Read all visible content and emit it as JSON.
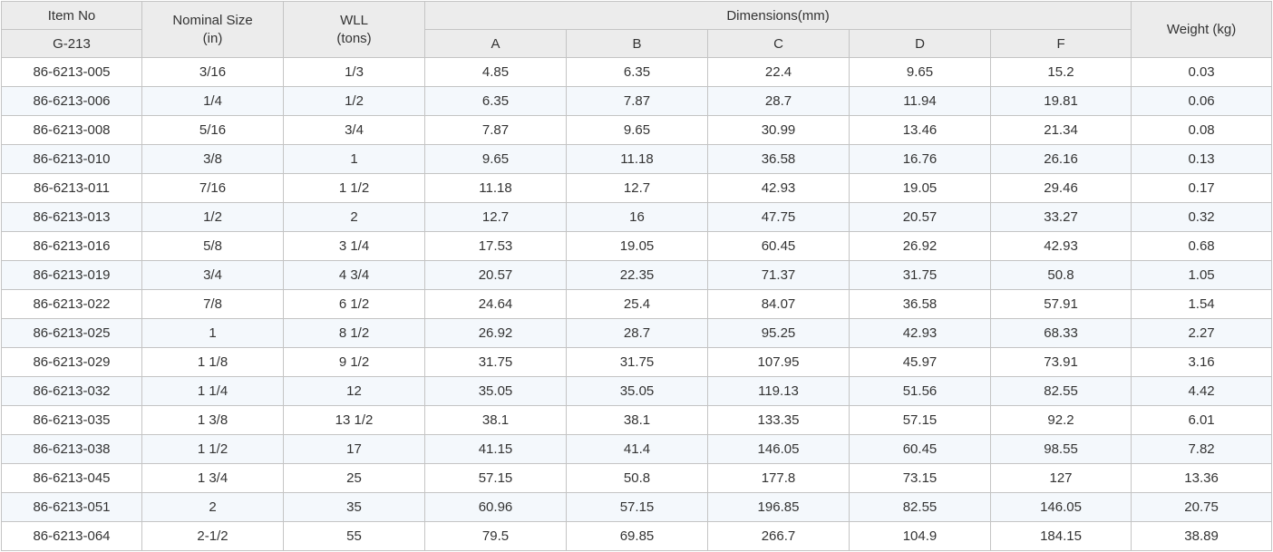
{
  "header": {
    "item_no": "Item No",
    "model": "G-213",
    "nominal_size_line1": "Nominal Size",
    "nominal_size_line2": "(in)",
    "wll_line1": "WLL",
    "wll_line2": "(tons)",
    "dimensions": "Dimensions(mm)",
    "dim_a": "A",
    "dim_b": "B",
    "dim_c": "C",
    "dim_d": "D",
    "dim_f": "F",
    "weight": "Weight (kg)"
  },
  "rows": [
    {
      "item": "86-6213-005",
      "size": "3/16",
      "wll": "1/3",
      "a": "4.85",
      "b": "6.35",
      "c": "22.4",
      "d": "9.65",
      "f": "15.2",
      "weight": "0.03"
    },
    {
      "item": "86-6213-006",
      "size": "1/4",
      "wll": "1/2",
      "a": "6.35",
      "b": "7.87",
      "c": "28.7",
      "d": "11.94",
      "f": "19.81",
      "weight": "0.06"
    },
    {
      "item": "86-6213-008",
      "size": "5/16",
      "wll": "3/4",
      "a": "7.87",
      "b": "9.65",
      "c": "30.99",
      "d": "13.46",
      "f": "21.34",
      "weight": "0.08"
    },
    {
      "item": "86-6213-010",
      "size": "3/8",
      "wll": "1",
      "a": "9.65",
      "b": "11.18",
      "c": "36.58",
      "d": "16.76",
      "f": "26.16",
      "weight": "0.13"
    },
    {
      "item": "86-6213-011",
      "size": "7/16",
      "wll": "1 1/2",
      "a": "11.18",
      "b": "12.7",
      "c": "42.93",
      "d": "19.05",
      "f": "29.46",
      "weight": "0.17"
    },
    {
      "item": "86-6213-013",
      "size": "1/2",
      "wll": "2",
      "a": "12.7",
      "b": "16",
      "c": "47.75",
      "d": "20.57",
      "f": "33.27",
      "weight": "0.32"
    },
    {
      "item": "86-6213-016",
      "size": "5/8",
      "wll": "3 1/4",
      "a": "17.53",
      "b": "19.05",
      "c": "60.45",
      "d": "26.92",
      "f": "42.93",
      "weight": "0.68"
    },
    {
      "item": "86-6213-019",
      "size": "3/4",
      "wll": "4 3/4",
      "a": "20.57",
      "b": "22.35",
      "c": "71.37",
      "d": "31.75",
      "f": "50.8",
      "weight": "1.05"
    },
    {
      "item": "86-6213-022",
      "size": "7/8",
      "wll": "6 1/2",
      "a": "24.64",
      "b": "25.4",
      "c": "84.07",
      "d": "36.58",
      "f": "57.91",
      "weight": "1.54"
    },
    {
      "item": "86-6213-025",
      "size": "1",
      "wll": "8 1/2",
      "a": "26.92",
      "b": "28.7",
      "c": "95.25",
      "d": "42.93",
      "f": "68.33",
      "weight": "2.27"
    },
    {
      "item": "86-6213-029",
      "size": "1 1/8",
      "wll": "9 1/2",
      "a": "31.75",
      "b": "31.75",
      "c": "107.95",
      "d": "45.97",
      "f": "73.91",
      "weight": "3.16"
    },
    {
      "item": "86-6213-032",
      "size": "1 1/4",
      "wll": "12",
      "a": "35.05",
      "b": "35.05",
      "c": "119.13",
      "d": "51.56",
      "f": "82.55",
      "weight": "4.42"
    },
    {
      "item": "86-6213-035",
      "size": "1 3/8",
      "wll": "13 1/2",
      "a": "38.1",
      "b": "38.1",
      "c": "133.35",
      "d": "57.15",
      "f": "92.2",
      "weight": "6.01"
    },
    {
      "item": "86-6213-038",
      "size": "1 1/2",
      "wll": "17",
      "a": "41.15",
      "b": "41.4",
      "c": "146.05",
      "d": "60.45",
      "f": "98.55",
      "weight": "7.82"
    },
    {
      "item": "86-6213-045",
      "size": "1 3/4",
      "wll": "25",
      "a": "57.15",
      "b": "50.8",
      "c": "177.8",
      "d": "73.15",
      "f": "127",
      "weight": "13.36"
    },
    {
      "item": "86-6213-051",
      "size": "2",
      "wll": "35",
      "a": "60.96",
      "b": "57.15",
      "c": "196.85",
      "d": "82.55",
      "f": "146.05",
      "weight": "20.75"
    },
    {
      "item": "86-6213-064",
      "size": "2-1/2",
      "wll": "55",
      "a": "79.5",
      "b": "69.85",
      "c": "266.7",
      "d": "104.9",
      "f": "184.15",
      "weight": "38.89"
    }
  ]
}
